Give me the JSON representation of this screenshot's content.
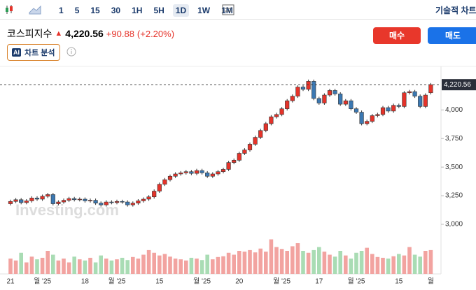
{
  "toolbar": {
    "timeframes": [
      "1",
      "5",
      "15",
      "30",
      "1H",
      "5H",
      "1D",
      "1W",
      "1M"
    ],
    "selected": "1D",
    "technical": "기술적 차트"
  },
  "quote": {
    "name": "코스피지수",
    "price": "4,220.56",
    "change": "+90.88",
    "change_pct": "(+2.20%)"
  },
  "buttons": {
    "buy": "매수",
    "sell": "매도",
    "ai": "차트 분석",
    "ai_badge": "AI"
  },
  "chart_data": {
    "type": "candlestick",
    "watermark": "Investing.com",
    "last_label": "4,220.56",
    "up_color": "#e5332a",
    "down_color": "#3b78b2",
    "vol_up_color": "#f2a3a0",
    "vol_down_color": "#a9dcb4",
    "categories": [
      "21",
      null,
      null,
      null,
      null,
      null,
      "월 '25",
      null,
      null,
      null,
      null,
      null,
      null,
      null,
      "18",
      null,
      null,
      null,
      null,
      null,
      "월 '25",
      null,
      null,
      null,
      null,
      null,
      null,
      null,
      "15",
      null,
      null,
      null,
      null,
      null,
      null,
      null,
      "월 '25",
      null,
      null,
      null,
      null,
      null,
      null,
      "20",
      null,
      null,
      null,
      null,
      null,
      null,
      null,
      "월 '25",
      null,
      null,
      null,
      null,
      null,
      null,
      "17",
      null,
      null,
      null,
      null,
      null,
      null,
      "월 '25",
      null,
      null,
      null,
      null,
      null,
      null,
      null,
      "15",
      null,
      null,
      null,
      null,
      null,
      "월"
    ],
    "open": [
      3180,
      3200,
      3215,
      3190,
      3205,
      3230,
      3220,
      3245,
      3260,
      3180,
      3195,
      3210,
      3225,
      3215,
      3220,
      3205,
      3210,
      3185,
      3170,
      3195,
      3190,
      3200,
      3195,
      3170,
      3185,
      3205,
      3220,
      3240,
      3290,
      3350,
      3390,
      3420,
      3440,
      3450,
      3460,
      3445,
      3470,
      3450,
      3420,
      3440,
      3460,
      3480,
      3540,
      3560,
      3620,
      3650,
      3700,
      3760,
      3820,
      3880,
      3940,
      3960,
      4010,
      4080,
      4120,
      4200,
      4180,
      4250,
      4100,
      4060,
      4130,
      4170,
      4140,
      4050,
      4080,
      4010,
      3980,
      3880,
      3900,
      3950,
      3960,
      4020,
      3990,
      4040,
      4030,
      4150,
      4160,
      4120,
      4030,
      4150
    ],
    "high": [
      3215,
      3230,
      3230,
      3220,
      3245,
      3245,
      3260,
      3275,
      3275,
      3210,
      3225,
      3240,
      3240,
      3235,
      3235,
      3225,
      3225,
      3200,
      3210,
      3210,
      3215,
      3215,
      3210,
      3200,
      3220,
      3235,
      3255,
      3305,
      3365,
      3405,
      3435,
      3455,
      3465,
      3475,
      3475,
      3485,
      3485,
      3465,
      3455,
      3475,
      3495,
      3555,
      3575,
      3635,
      3665,
      3715,
      3775,
      3835,
      3895,
      3955,
      3975,
      4025,
      4095,
      4135,
      4215,
      4215,
      4265,
      4265,
      4115,
      4145,
      4185,
      4185,
      4155,
      4095,
      4095,
      4025,
      3995,
      3915,
      3965,
      3975,
      4035,
      4035,
      4055,
      4055,
      4165,
      4175,
      4175,
      4135,
      4145,
      4235
    ],
    "low": [
      3165,
      3185,
      3175,
      3175,
      3190,
      3205,
      3205,
      3230,
      3165,
      3165,
      3180,
      3195,
      3200,
      3200,
      3190,
      3190,
      3170,
      3155,
      3155,
      3175,
      3175,
      3180,
      3155,
      3155,
      3170,
      3190,
      3205,
      3225,
      3275,
      3335,
      3375,
      3405,
      3425,
      3435,
      3430,
      3430,
      3435,
      3405,
      3405,
      3425,
      3445,
      3465,
      3525,
      3545,
      3605,
      3635,
      3685,
      3745,
      3805,
      3865,
      3925,
      3945,
      3995,
      4065,
      4105,
      4165,
      4165,
      4085,
      4045,
      4045,
      4115,
      4125,
      4035,
      4035,
      3995,
      3965,
      3865,
      3865,
      3885,
      3935,
      3945,
      3975,
      3975,
      4015,
      4015,
      4135,
      4105,
      4015,
      4015,
      4135
    ],
    "close": [
      3200,
      3215,
      3190,
      3205,
      3230,
      3220,
      3245,
      3260,
      3180,
      3195,
      3210,
      3225,
      3215,
      3220,
      3205,
      3210,
      3185,
      3170,
      3195,
      3190,
      3200,
      3195,
      3170,
      3185,
      3205,
      3220,
      3240,
      3290,
      3350,
      3390,
      3420,
      3440,
      3450,
      3460,
      3445,
      3470,
      3450,
      3420,
      3440,
      3460,
      3480,
      3540,
      3560,
      3620,
      3650,
      3700,
      3760,
      3820,
      3880,
      3940,
      3960,
      4010,
      4080,
      4120,
      4200,
      4180,
      4250,
      4100,
      4060,
      4130,
      4170,
      4140,
      4050,
      4080,
      4010,
      3980,
      3880,
      3900,
      3950,
      3960,
      4020,
      3990,
      4040,
      4030,
      4150,
      4160,
      4120,
      4030,
      4129.68,
      4220.56
    ],
    "volume": [
      40,
      35,
      55,
      30,
      45,
      38,
      42,
      60,
      50,
      35,
      40,
      30,
      45,
      38,
      35,
      42,
      30,
      48,
      40,
      35,
      38,
      42,
      36,
      44,
      40,
      50,
      62,
      55,
      48,
      52,
      45,
      40,
      38,
      35,
      42,
      40,
      36,
      50,
      38,
      44,
      46,
      55,
      50,
      60,
      58,
      62,
      56,
      66,
      58,
      90,
      70,
      65,
      60,
      72,
      80,
      60,
      55,
      62,
      70,
      58,
      50,
      45,
      60,
      48,
      40,
      55,
      60,
      68,
      52,
      44,
      42,
      40,
      46,
      52,
      48,
      70,
      50,
      45,
      60,
      62
    ],
    "vlim": [
      0,
      100
    ],
    "ylim": [
      2945,
      4350
    ],
    "yticks": [
      {
        "value": 3000,
        "label": "3,000"
      },
      {
        "value": 3250,
        "label": "3,250"
      },
      {
        "value": 3500,
        "label": "3,500"
      },
      {
        "value": 3750,
        "label": "3,750"
      },
      {
        "value": 4000,
        "label": "4,000"
      }
    ]
  }
}
